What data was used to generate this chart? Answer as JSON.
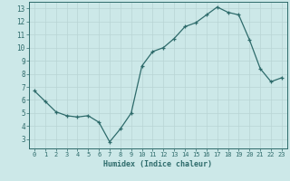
{
  "x": [
    0,
    1,
    2,
    3,
    4,
    5,
    6,
    7,
    8,
    9,
    10,
    11,
    12,
    13,
    14,
    15,
    16,
    17,
    18,
    19,
    20,
    21,
    22,
    23
  ],
  "y": [
    6.7,
    5.9,
    5.1,
    4.8,
    4.7,
    4.8,
    4.3,
    2.8,
    3.8,
    5.0,
    8.6,
    9.7,
    10.0,
    10.7,
    11.6,
    11.9,
    12.5,
    13.1,
    12.7,
    12.5,
    10.6,
    8.4,
    7.4,
    7.7
  ],
  "xlabel": "Humidex (Indice chaleur)",
  "xlim": [
    -0.5,
    23.5
  ],
  "ylim": [
    2.3,
    13.5
  ],
  "yticks": [
    3,
    4,
    5,
    6,
    7,
    8,
    9,
    10,
    11,
    12,
    13
  ],
  "xticks": [
    0,
    1,
    2,
    3,
    4,
    5,
    6,
    7,
    8,
    9,
    10,
    11,
    12,
    13,
    14,
    15,
    16,
    17,
    18,
    19,
    20,
    21,
    22,
    23
  ],
  "line_color": "#2e6b6b",
  "marker": "+",
  "bg_color": "#cce8e8",
  "grid_color": "#b8d4d4",
  "tick_label_color": "#2e6b6b",
  "axis_label_color": "#2e6b6b",
  "font_family": "monospace"
}
